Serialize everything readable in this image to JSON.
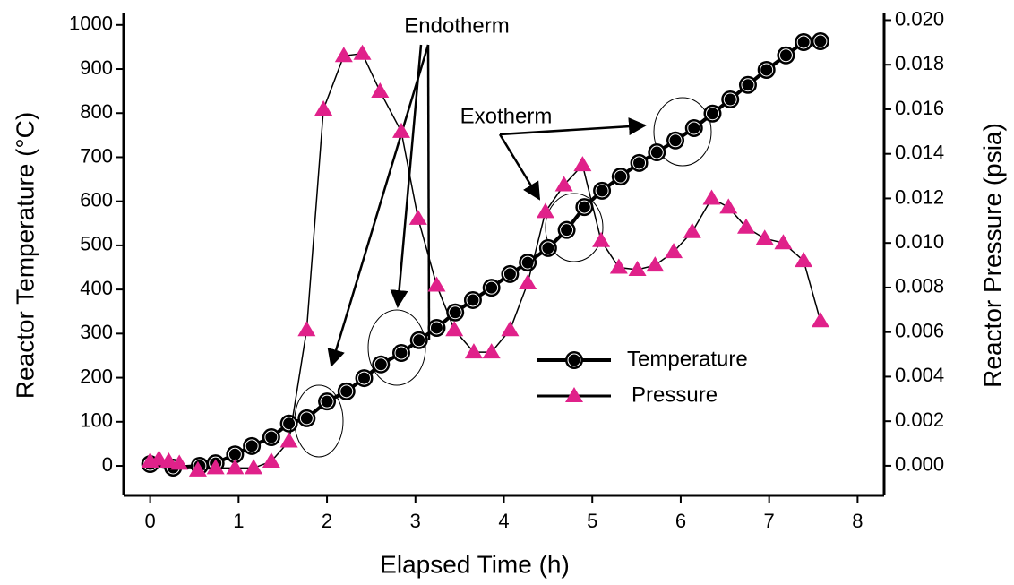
{
  "chart_data": {
    "type": "line",
    "xlabel": "Elapsed Time (h)",
    "ylabel": "Reactor Temperature (°C)",
    "y2label": "Reactor Pressure (psia)",
    "annotations": [
      "Endotherm",
      "Exotherm"
    ],
    "xlim": [
      -0.3,
      8.3
    ],
    "xticks": [
      0,
      1,
      2,
      3,
      4,
      5,
      6,
      7,
      8
    ],
    "ylim": [
      -67,
      1026
    ],
    "yticks": [
      0,
      100,
      200,
      300,
      400,
      500,
      600,
      700,
      800,
      900,
      1000
    ],
    "y2lim": [
      -0.00133,
      0.0203
    ],
    "y2ticks": [
      {
        "value": 0,
        "label": "0.000"
      },
      {
        "value": 0.002,
        "label": "0.002"
      },
      {
        "value": 0.004,
        "label": "0.004"
      },
      {
        "value": 0.006,
        "label": "0.006"
      },
      {
        "value": 0.008,
        "label": "0.008"
      },
      {
        "value": 0.01,
        "label": "0.010"
      },
      {
        "value": 0.012,
        "label": "0.012"
      },
      {
        "value": 0.014,
        "label": "0.014"
      },
      {
        "value": 0.016,
        "label": "0.016"
      },
      {
        "value": 0.018,
        "label": "0.018"
      },
      {
        "value": 0.02,
        "label": "0.020"
      }
    ],
    "series": [
      {
        "name": "Temperature",
        "color": "#000000",
        "marker": "circle",
        "x": [
          0,
          0.26,
          0.56,
          0.74,
          0.96,
          1.15,
          1.37,
          1.57,
          1.77,
          2.0,
          2.22,
          2.42,
          2.61,
          2.84,
          3.04,
          3.24,
          3.45,
          3.65,
          3.86,
          4.07,
          4.27,
          4.5,
          4.71,
          4.91,
          5.11,
          5.32,
          5.53,
          5.73,
          5.94,
          6.15,
          6.36,
          6.56,
          6.76,
          6.97,
          7.19,
          7.39,
          7.58
        ],
        "values": [
          4,
          -4,
          0,
          6,
          26,
          45,
          65,
          96,
          108,
          146,
          169,
          199,
          230,
          256,
          285,
          313,
          348,
          376,
          404,
          435,
          461,
          494,
          535,
          587,
          624,
          656,
          687,
          711,
          738,
          766,
          799,
          831,
          864,
          898,
          931,
          961,
          963
        ]
      },
      {
        "name": "Pressure",
        "color": "#e0218a",
        "marker": "triangle",
        "axis": "y2",
        "x": [
          0,
          0.1,
          0.21,
          0.33,
          0.54,
          0.74,
          0.96,
          1.17,
          1.37,
          1.57,
          1.77,
          1.96,
          2.19,
          2.4,
          2.6,
          2.84,
          3.03,
          3.24,
          3.44,
          3.66,
          3.86,
          4.07,
          4.27,
          4.47,
          4.68,
          4.89,
          5.1,
          5.3,
          5.51,
          5.71,
          5.92,
          6.13,
          6.35,
          6.54,
          6.74,
          6.95,
          7.16,
          7.39,
          7.58
        ],
        "values": [
          0.0002,
          0.0003,
          0.0002,
          0.0001,
          -0.0002,
          -0.0001,
          -0.0001,
          -0.0001,
          0.0002,
          0.0011,
          0.0061,
          0.016,
          0.0184,
          0.0185,
          0.0168,
          0.015,
          0.0111,
          0.0081,
          0.0061,
          0.0051,
          0.0051,
          0.0061,
          0.0082,
          0.0114,
          0.0126,
          0.0135,
          0.0101,
          0.0089,
          0.0088,
          0.009,
          0.0096,
          0.0105,
          0.012,
          0.0116,
          0.0107,
          0.0102,
          0.01,
          0.0092,
          0.0065
        ]
      }
    ]
  }
}
